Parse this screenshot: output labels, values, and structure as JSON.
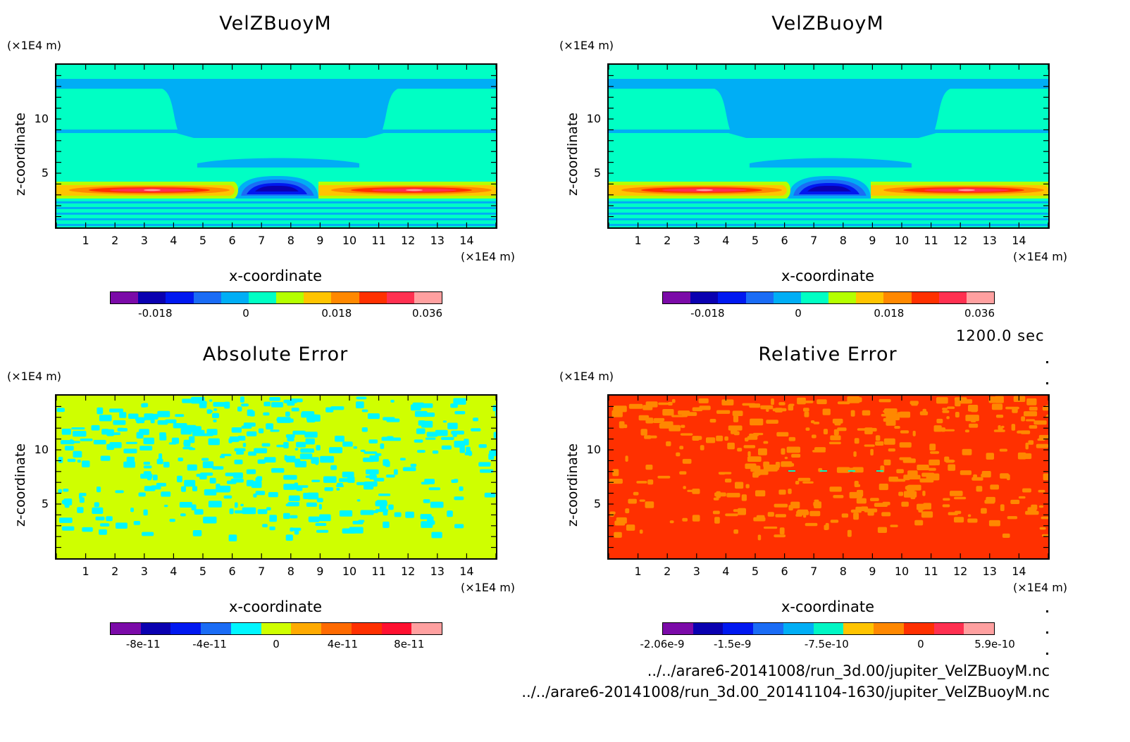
{
  "time_label": "1200.0 sec",
  "files": [
    "../../arare6-20141008/run_3d.00/jupiter_VelZBuoyM.nc",
    "../../arare6-20141008/run_3d.00_20141104-1630/jupiter_VelZBuoyM.nc"
  ],
  "colors": {
    "velz": [
      "#7b0aa8",
      "#0a00b0",
      "#0018f0",
      "#1a6cf5",
      "#00aef5",
      "#00ffc4",
      "#b4ff00",
      "#ffc400",
      "#ff8800",
      "#ff3000",
      "#ff3050",
      "#ffa0a0"
    ],
    "abs": [
      "#7b0aa8",
      "#0a00b0",
      "#0018f0",
      "#1a6cf5",
      "#00f6ff",
      "#cfff00",
      "#ffaa00",
      "#ff6a00",
      "#ff3000",
      "#ff1030",
      "#ffa0a0"
    ],
    "rel": [
      "#7b0aa8",
      "#0a00b0",
      "#0018f0",
      "#1a6cf5",
      "#00aef5",
      "#00f6c4",
      "#ffc400",
      "#ff8800",
      "#ff3000",
      "#ff3050",
      "#ffa0a0"
    ]
  },
  "chart_data": [
    {
      "id": "velz_1",
      "type": "heatmap",
      "title": "VelZBuoyM",
      "xlabel": "x-coordinate",
      "ylabel": "z-coordinate",
      "x_unit": "(×1E4 m)",
      "z_unit": "(×1E4 m)",
      "xlim": [
        0,
        15
      ],
      "ylim": [
        0,
        15
      ],
      "xticks": [
        "1",
        "2",
        "3",
        "4",
        "5",
        "6",
        "7",
        "8",
        "9",
        "10",
        "11",
        "12",
        "13",
        "14"
      ],
      "yticks": [
        "5",
        "10"
      ],
      "colorbar_ticks": [
        "-0.018",
        "0",
        "0.018",
        "0.036"
      ],
      "colorbar_tick_values": [
        -0.018,
        0,
        0.018,
        0.036
      ],
      "colorbar_range": [
        -0.027,
        0.039
      ]
    },
    {
      "id": "velz_2",
      "type": "heatmap",
      "title": "VelZBuoyM",
      "xlabel": "x-coordinate",
      "ylabel": "z-coordinate",
      "x_unit": "(×1E4 m)",
      "z_unit": "(×1E4 m)",
      "xlim": [
        0,
        15
      ],
      "ylim": [
        0,
        15
      ],
      "xticks": [
        "1",
        "2",
        "3",
        "4",
        "5",
        "6",
        "7",
        "8",
        "9",
        "10",
        "11",
        "12",
        "13",
        "14"
      ],
      "yticks": [
        "5",
        "10"
      ],
      "colorbar_ticks": [
        "-0.018",
        "0",
        "0.018",
        "0.036"
      ],
      "colorbar_tick_values": [
        -0.018,
        0,
        0.018,
        0.036
      ],
      "colorbar_range": [
        -0.027,
        0.039
      ]
    },
    {
      "id": "abs_err",
      "type": "heatmap",
      "title": "Absolute Error",
      "xlabel": "x-coordinate",
      "ylabel": "z-coordinate",
      "x_unit": "(×1E4 m)",
      "z_unit": "(×1E4 m)",
      "xlim": [
        0,
        15
      ],
      "ylim": [
        0,
        15
      ],
      "xticks": [
        "1",
        "2",
        "3",
        "4",
        "5",
        "6",
        "7",
        "8",
        "9",
        "10",
        "11",
        "12",
        "13",
        "14"
      ],
      "yticks": [
        "5",
        "10"
      ],
      "colorbar_ticks": [
        "-8e-11",
        "-4e-11",
        "0",
        "4e-11",
        "8e-11"
      ],
      "colorbar_tick_values": [
        -8e-11,
        -4e-11,
        0,
        4e-11,
        8e-11
      ],
      "colorbar_range": [
        -1e-10,
        1e-10
      ]
    },
    {
      "id": "rel_err",
      "type": "heatmap",
      "title": "Relative Error",
      "xlabel": "x-coordinate",
      "ylabel": "z-coordinate",
      "x_unit": "(×1E4 m)",
      "z_unit": "(×1E4 m)",
      "xlim": [
        0,
        15
      ],
      "ylim": [
        0,
        15
      ],
      "xticks": [
        "1",
        "2",
        "3",
        "4",
        "5",
        "6",
        "7",
        "8",
        "9",
        "10",
        "11",
        "12",
        "13",
        "14"
      ],
      "yticks": [
        "5",
        "10"
      ],
      "colorbar_ticks": [
        "-2.06e-9",
        "-1.5e-9",
        "-7.5e-10",
        "0",
        "5.9e-10"
      ],
      "colorbar_tick_values": [
        -2.06e-09,
        -1.5e-09,
        -7.5e-10,
        0,
        5.9e-10
      ],
      "colorbar_range": [
        -2.06e-09,
        5.9e-10
      ]
    }
  ]
}
